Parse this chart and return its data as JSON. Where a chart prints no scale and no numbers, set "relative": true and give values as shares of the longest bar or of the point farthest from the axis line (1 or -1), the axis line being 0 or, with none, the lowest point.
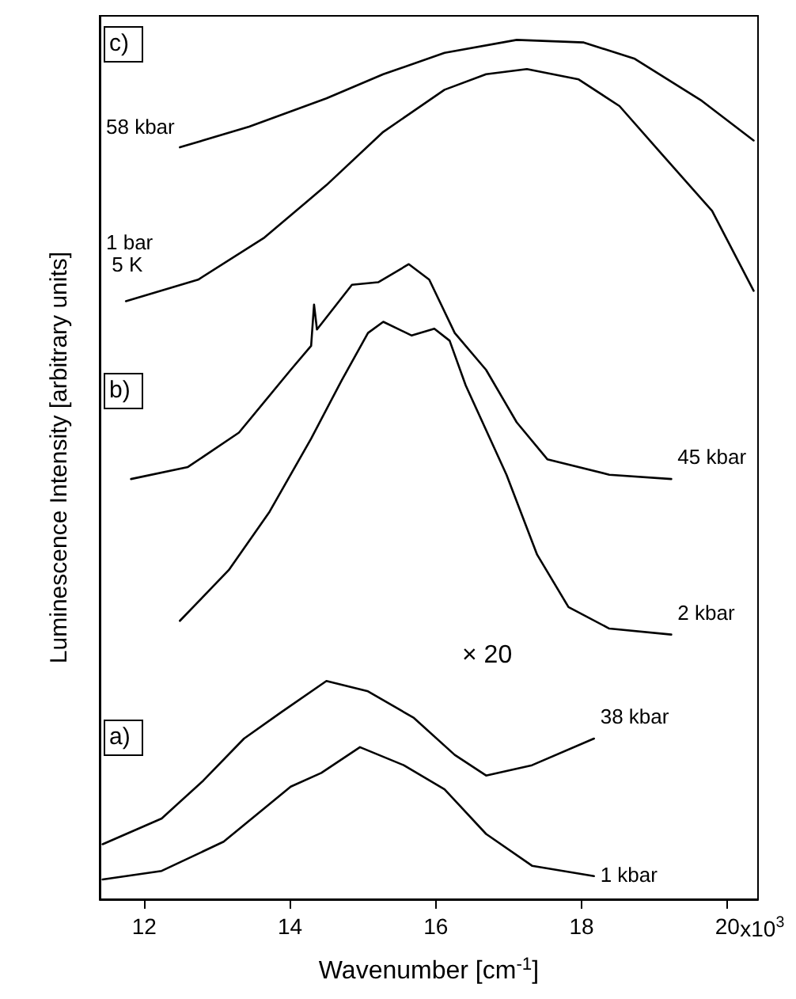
{
  "chart_data": {
    "type": "line",
    "relative": true,
    "xlabel": "Wavenumber [cm$^{-1}$]",
    "ylabel": "Luminescence Intensity [arbitrary units]",
    "xlim": [
      11.39,
      20.42
    ],
    "xticks": [
      12,
      14,
      16,
      18,
      20
    ],
    "tick_labels": "x",
    "grid": false,
    "legend": false,
    "marker": "none",
    "line_style": "solid",
    "annotations": [
      "c)",
      "b)",
      "a)",
      "× 20",
      "x10$^{3}$"
    ],
    "series": [
      {
        "name": "58 kbar",
        "color": "#000000",
        "x": [
          12.49,
          13.44,
          14.5,
          15.28,
          16.12,
          17.11,
          18.03,
          18.73,
          19.65,
          20.36
        ],
        "values": [
          0.875,
          0.899,
          0.932,
          0.96,
          0.985,
          1.0,
          0.997,
          0.978,
          0.929,
          0.883
        ]
      },
      {
        "name": "1 bar 5 K",
        "color": "#000000",
        "x": [
          11.75,
          12.74,
          13.65,
          14.5,
          15.28,
          16.12,
          16.69,
          17.25,
          17.96,
          18.52,
          19.09,
          19.79,
          20.36
        ],
        "values": [
          0.696,
          0.721,
          0.77,
          0.831,
          0.893,
          0.942,
          0.96,
          0.966,
          0.954,
          0.923,
          0.868,
          0.801,
          0.708
        ]
      },
      {
        "name": "45 kbar",
        "color": "#000000",
        "x": [
          11.82,
          12.6,
          13.3,
          14.01,
          14.29,
          14.33,
          14.37,
          14.85,
          15.21,
          15.63,
          15.91,
          16.26,
          16.69,
          17.11,
          17.53,
          18.38,
          19.23
        ],
        "values": [
          0.489,
          0.503,
          0.543,
          0.616,
          0.644,
          0.692,
          0.663,
          0.715,
          0.718,
          0.739,
          0.721,
          0.659,
          0.616,
          0.555,
          0.512,
          0.494,
          0.489
        ]
      },
      {
        "name": "2 kbar",
        "color": "#000000",
        "x": [
          12.49,
          13.16,
          13.72,
          14.29,
          14.71,
          15.07,
          15.28,
          15.67,
          15.98,
          16.19,
          16.41,
          16.97,
          17.39,
          17.82,
          18.38,
          19.23
        ],
        "values": [
          0.324,
          0.383,
          0.451,
          0.536,
          0.604,
          0.659,
          0.672,
          0.656,
          0.664,
          0.65,
          0.598,
          0.494,
          0.401,
          0.34,
          0.315,
          0.308
        ]
      },
      {
        "name": "38 kbar",
        "color": "#000000",
        "x": [
          11.43,
          12.24,
          12.81,
          13.37,
          13.87,
          14.5,
          15.07,
          15.7,
          16.26,
          16.69,
          17.32,
          18.17
        ],
        "values": [
          0.064,
          0.094,
          0.138,
          0.187,
          0.217,
          0.254,
          0.242,
          0.211,
          0.168,
          0.144,
          0.156,
          0.187
        ]
      },
      {
        "name": "1 kbar",
        "color": "#000000",
        "x": [
          11.43,
          12.24,
          13.09,
          14.01,
          14.43,
          14.96,
          15.56,
          16.12,
          16.69,
          17.32,
          18.17
        ],
        "values": [
          0.023,
          0.033,
          0.067,
          0.131,
          0.147,
          0.177,
          0.156,
          0.128,
          0.076,
          0.039,
          0.027
        ]
      }
    ]
  }
}
